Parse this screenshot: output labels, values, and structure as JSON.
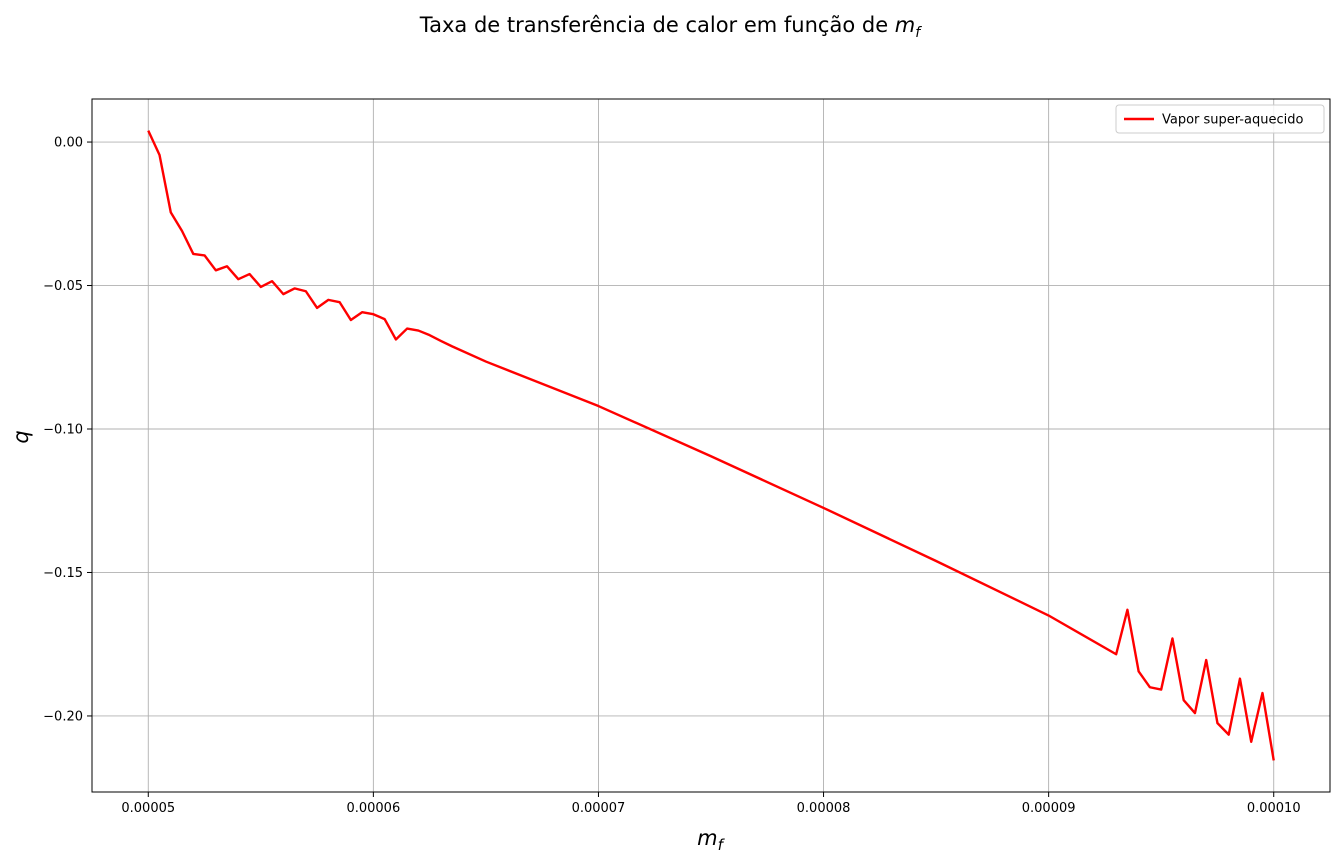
{
  "chart_data": {
    "type": "line",
    "title": "Taxa de transferência de calor em função de ",
    "title_math": {
      "base": "m",
      "sub": "f"
    },
    "xlabel": {
      "base": "m",
      "sub": "f"
    },
    "ylabel": "q",
    "xlim": [
      4.75e-05,
      0.0001025
    ],
    "ylim": [
      -0.2265,
      0.015
    ],
    "grid": true,
    "legend_position": "top-right",
    "x_ticks": [
      5e-05,
      6e-05,
      7e-05,
      8e-05,
      9e-05,
      0.0001
    ],
    "x_tick_labels": [
      "0.00005",
      "0.00006",
      "0.00007",
      "0.00008",
      "0.00009",
      "0.00010"
    ],
    "y_ticks": [
      0.0,
      -0.05,
      -0.1,
      -0.15,
      -0.2
    ],
    "y_tick_labels": [
      "0.00",
      "−0.05",
      "−0.10",
      "−0.15",
      "−0.20"
    ],
    "series": [
      {
        "name": "Vapor super-aquecido",
        "color": "#ff0000",
        "points": [
          [
            5e-05,
            0.004
          ],
          [
            5.05e-05,
            -0.0045
          ],
          [
            5.1e-05,
            -0.0245
          ],
          [
            5.15e-05,
            -0.031
          ],
          [
            5.2e-05,
            -0.039
          ],
          [
            5.25e-05,
            -0.0395
          ],
          [
            5.3e-05,
            -0.0447
          ],
          [
            5.35e-05,
            -0.0433
          ],
          [
            5.4e-05,
            -0.0478
          ],
          [
            5.45e-05,
            -0.046
          ],
          [
            5.5e-05,
            -0.0505
          ],
          [
            5.55e-05,
            -0.0485
          ],
          [
            5.6e-05,
            -0.053
          ],
          [
            5.65e-05,
            -0.051
          ],
          [
            5.7e-05,
            -0.052
          ],
          [
            5.75e-05,
            -0.0578
          ],
          [
            5.8e-05,
            -0.055
          ],
          [
            5.85e-05,
            -0.0558
          ],
          [
            5.9e-05,
            -0.062
          ],
          [
            5.95e-05,
            -0.0593
          ],
          [
            6e-05,
            -0.06
          ],
          [
            6.05e-05,
            -0.0617
          ],
          [
            6.1e-05,
            -0.0688
          ],
          [
            6.15e-05,
            -0.065
          ],
          [
            6.2e-05,
            -0.0657
          ],
          [
            6.25e-05,
            -0.0673
          ],
          [
            6.3e-05,
            -0.0693
          ],
          [
            6.35e-05,
            -0.0712
          ],
          [
            6.5e-05,
            -0.0765
          ],
          [
            7e-05,
            -0.092
          ],
          [
            7.5e-05,
            -0.1095
          ],
          [
            8e-05,
            -0.1275
          ],
          [
            8.5e-05,
            -0.146
          ],
          [
            9e-05,
            -0.165
          ],
          [
            9.3e-05,
            -0.1785
          ],
          [
            9.35e-05,
            -0.163
          ],
          [
            9.4e-05,
            -0.1845
          ],
          [
            9.45e-05,
            -0.19
          ],
          [
            9.5e-05,
            -0.1908
          ],
          [
            9.55e-05,
            -0.173
          ],
          [
            9.6e-05,
            -0.1945
          ],
          [
            9.65e-05,
            -0.199
          ],
          [
            9.7e-05,
            -0.1805
          ],
          [
            9.75e-05,
            -0.2025
          ],
          [
            9.8e-05,
            -0.2065
          ],
          [
            9.85e-05,
            -0.187
          ],
          [
            9.9e-05,
            -0.209
          ],
          [
            9.95e-05,
            -0.192
          ],
          [
            0.0001,
            -0.2155
          ]
        ]
      }
    ]
  }
}
